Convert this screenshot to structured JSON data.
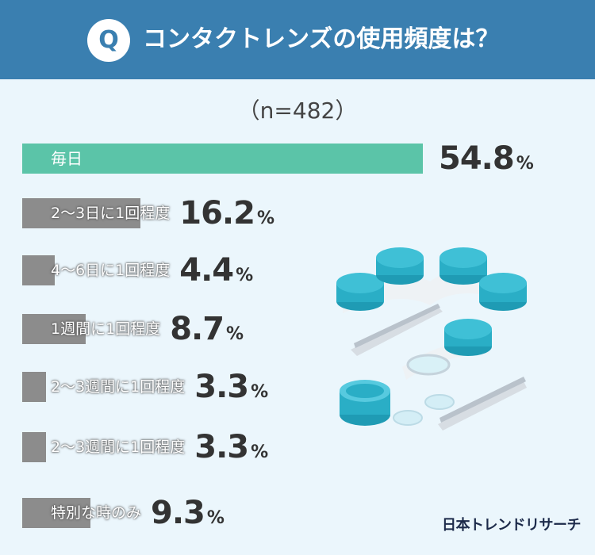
{
  "header": {
    "badge": "Q",
    "title": "コンタクトレンズの使用頻度は？"
  },
  "sample_size": "（n=482）",
  "percent_sign": "%",
  "chart_data": {
    "type": "bar",
    "title": "コンタクトレンズの使用頻度は？",
    "subtitle": "（n=482）",
    "unit": "%",
    "orientation": "horizontal",
    "categories": [
      "毎日",
      "2〜3日に1回程度",
      "4〜6日に1回程度",
      "1週間に1回程度",
      "2〜3週間に1回程度",
      "2〜3週間に1回程度",
      "特別な時のみ"
    ],
    "values": [
      54.8,
      16.2,
      4.4,
      8.7,
      3.3,
      3.3,
      9.3
    ],
    "value_labels": [
      "54.8",
      "16.2",
      "4.4",
      "8.7",
      "3.3",
      "3.3",
      "9.3"
    ],
    "colors": {
      "highlight": "#5bc4a8",
      "bar": "#8c8c8c"
    },
    "xlim": [
      0,
      54.8
    ],
    "grid": false,
    "legend": "none"
  },
  "brand": "日本トレンドリサーチ",
  "icons": [
    "q-icon",
    "contact-lens-case-icon",
    "tweezers-icon",
    "contact-lens-icon"
  ]
}
